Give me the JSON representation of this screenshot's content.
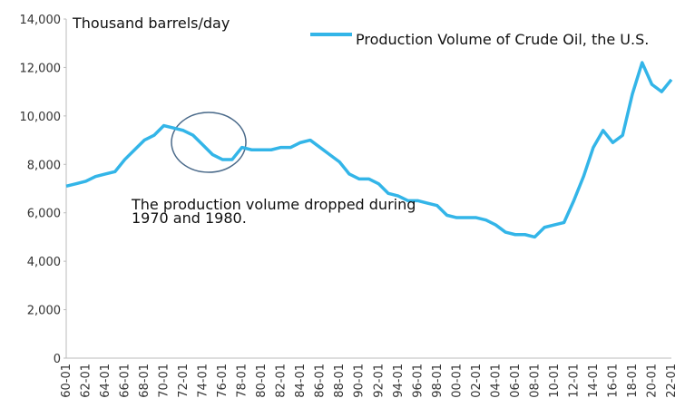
{
  "chart_data": {
    "type": "line",
    "y_label": "Thousand barrels/day",
    "annotation": "The production volume dropped during 1970 and 1980.",
    "categories": [
      "60-01",
      null,
      "62-01",
      null,
      "64-01",
      null,
      "66-01",
      null,
      "68-01",
      null,
      "70-01",
      null,
      "72-01",
      null,
      "74-01",
      null,
      "76-01",
      null,
      "78-01",
      null,
      "80-01",
      null,
      "82-01",
      null,
      "84-01",
      null,
      "86-01",
      null,
      "88-01",
      null,
      "90-01",
      null,
      "92-01",
      null,
      "94-01",
      null,
      "96-01",
      null,
      "98-01",
      null,
      "00-01",
      null,
      "02-01",
      null,
      "04-01",
      null,
      "06-01",
      null,
      "08-01",
      null,
      "10-01",
      null,
      "12-01",
      null,
      "14-01",
      null,
      "16-01",
      null,
      "18-01",
      null,
      "20-01",
      null,
      "22-01"
    ],
    "series": [
      {
        "name": "Production Volume of Crude Oil, the U.S.",
        "color": "#33b5e8",
        "values": [
          7100,
          7200,
          7300,
          7500,
          7600,
          7700,
          8200,
          8600,
          9000,
          9200,
          9600,
          9500,
          9400,
          9200,
          8800,
          8400,
          8200,
          8200,
          8700,
          8600,
          8600,
          8600,
          8700,
          8700,
          8900,
          9000,
          8700,
          8400,
          8100,
          7600,
          7400,
          7400,
          7200,
          6800,
          6700,
          6500,
          6500,
          6400,
          6300,
          5900,
          5800,
          5800,
          5800,
          5700,
          5500,
          5200,
          5100,
          5100,
          5000,
          5400,
          5500,
          5600,
          6500,
          7500,
          8700,
          9400,
          8900,
          9200,
          10900,
          12200,
          11300,
          11000,
          11500
        ]
      }
    ],
    "ylim": [
      0,
      14000
    ],
    "yticks": [
      0,
      {
        "value": 2000,
        "label": "2,000"
      },
      {
        "value": 4000,
        "label": "4,000"
      },
      {
        "value": 6000,
        "label": "6,000"
      },
      {
        "value": 8000,
        "label": "8,000"
      },
      {
        "value": 10000,
        "label": "10,000"
      },
      {
        "value": 12000,
        "label": "12,000"
      },
      {
        "value": 14000,
        "label": "14,000"
      }
    ]
  }
}
